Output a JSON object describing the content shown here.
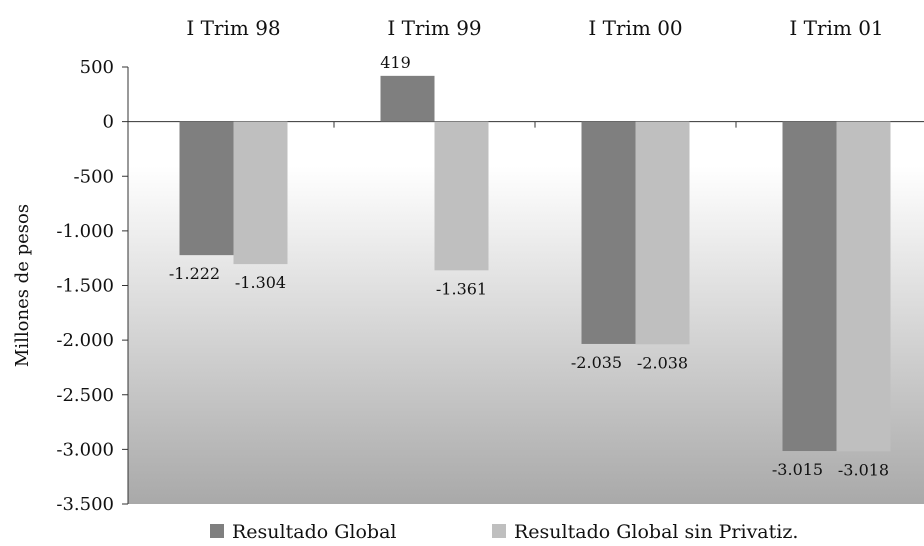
{
  "chart_data": {
    "type": "bar",
    "categories": [
      "I Trim 98",
      "I Trim 99",
      "I Trim 00",
      "I Trim 01"
    ],
    "series": [
      {
        "name": "Resultado Global",
        "values": [
          -1222,
          419,
          -2035,
          -3015
        ],
        "labels": [
          "-1.222",
          "419",
          "-2.035",
          "-3.015"
        ],
        "color": "#7f7f7f"
      },
      {
        "name": "Resultado Global sin Privatiz.",
        "values": [
          -1304,
          -1361,
          -2038,
          -3018
        ],
        "labels": [
          "-1.304",
          "-1.361",
          "-2.038",
          "-3.018"
        ],
        "color": "#bfbfbf"
      }
    ],
    "title": "",
    "xlabel": "",
    "ylabel": "Millones de pesos",
    "ylim": [
      -3500,
      500
    ],
    "yticks": [
      500,
      0,
      -500,
      -1000,
      -1500,
      -2000,
      -2500,
      -3000,
      -3500
    ],
    "ytick_labels": [
      "500",
      "0",
      "-500",
      "-1.000",
      "-1.500",
      "-2.000",
      "-2.500",
      "-3.000",
      "-3.500"
    ],
    "category_axis_position": "top",
    "legend_position": "bottom",
    "grid": false,
    "background": "gradient-white-to-gray"
  }
}
